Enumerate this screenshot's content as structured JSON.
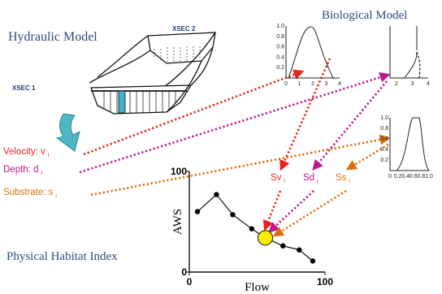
{
  "hydraulic_model": {
    "title": "Hydraulic Model",
    "xsec_1": "XSEC 1",
    "xsec_2": "XSEC 2"
  },
  "biological_model": {
    "title": "Biological Model",
    "curves": [
      {
        "yticks": [
          "1.0",
          "0.8",
          "0.6",
          "0.4",
          "0.2"
        ],
        "xticks": [
          "0",
          "1",
          "2",
          "3",
          "4"
        ]
      },
      {
        "yticks": [],
        "xticks": [
          "2",
          "3",
          "4"
        ]
      },
      {
        "yticks": [
          "1.0",
          "0.8",
          "0.6",
          "0.4",
          "0.2"
        ],
        "xticks": [
          "0",
          "0.2",
          "0.4",
          "0.6",
          "0.8",
          "1.0"
        ]
      }
    ]
  },
  "variables": [
    {
      "label": "Velocity: v",
      "subscript": "i",
      "color": "#e8231c"
    },
    {
      "label": "Depth: d",
      "subscript": "i",
      "color": "#c0168c"
    },
    {
      "label": "Substrate: s",
      "subscript": "i",
      "color": "#d4700f"
    }
  ],
  "suitability": [
    {
      "label": "Sv",
      "subscript": "i"
    },
    {
      "label": "Sd",
      "subscript": "i"
    },
    {
      "label": "Ss",
      "subscript": "i"
    }
  ],
  "habitat_chart": {
    "type": "line",
    "title": "Physical Habitat Index",
    "ylabel": "AWS",
    "xlabel": "Flow",
    "xlim": [
      0,
      100
    ],
    "ylim": [
      0,
      100
    ],
    "xticks": [
      0,
      100
    ],
    "yticks": [
      0,
      100
    ],
    "x": [
      6,
      20,
      32,
      46,
      56,
      69,
      81,
      91
    ],
    "y": [
      60,
      77,
      57,
      43,
      34,
      26,
      22,
      11
    ],
    "marker_colors": [
      "#000000",
      "#000000",
      "#000000",
      "#000000",
      "#ffee00",
      "#000000",
      "#000000",
      "#000000"
    ]
  }
}
